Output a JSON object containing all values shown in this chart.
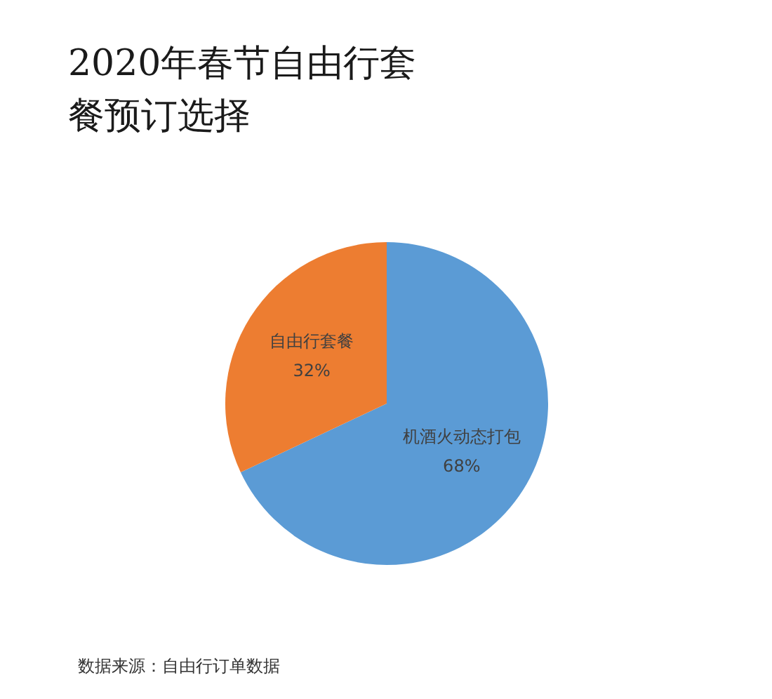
{
  "chart_data": {
    "type": "pie",
    "title": "2020年春节自由行套餐预订选择",
    "categories": [
      "机酒火动态打包",
      "自由行套餐"
    ],
    "values": [
      68,
      32
    ],
    "colors": [
      "#5b9bd5",
      "#ed7d31"
    ],
    "value_labels": [
      "68%",
      "32%"
    ],
    "annotations": [
      "数据来源：自由行订单数据"
    ]
  }
}
